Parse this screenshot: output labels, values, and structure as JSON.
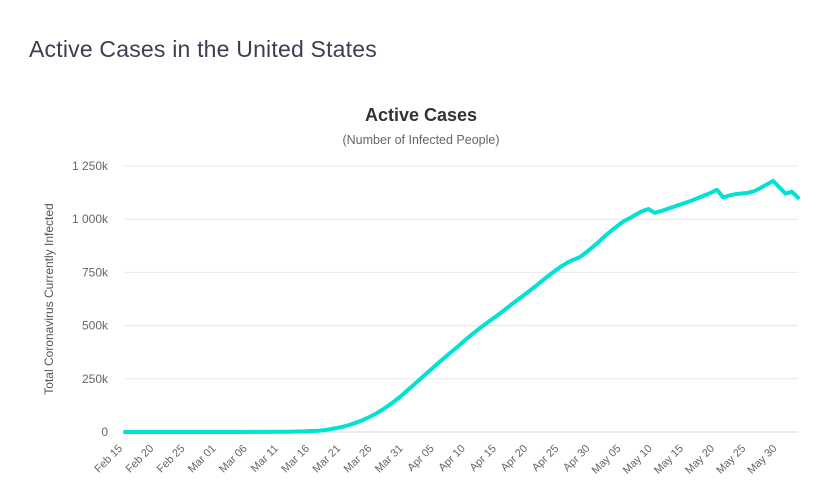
{
  "page": {
    "title": "Active Cases in the United States"
  },
  "chart_data": {
    "type": "line",
    "title": "Active Cases",
    "subtitle": "(Number of Infected People)",
    "ylabel": "Total Coronavirus Currently Infected",
    "xlabel": "",
    "legend": "none",
    "grid": "horizontal",
    "x_unit": "daily",
    "x_start": "Feb 15",
    "x_end": "Jun 02",
    "ylim": [
      0,
      1250000
    ],
    "ytick_interval": 250000,
    "yticks": [
      {
        "value": 0,
        "label": "0"
      },
      {
        "value": 250000,
        "label": "250k"
      },
      {
        "value": 500000,
        "label": "500k"
      },
      {
        "value": 750000,
        "label": "750k"
      },
      {
        "value": 1000000,
        "label": "1 000k"
      },
      {
        "value": 1250000,
        "label": "1 250k"
      }
    ],
    "xticks": [
      {
        "day": 0,
        "label": "Feb 15"
      },
      {
        "day": 5,
        "label": "Feb 20"
      },
      {
        "day": 10,
        "label": "Feb 25"
      },
      {
        "day": 15,
        "label": "Mar 01"
      },
      {
        "day": 20,
        "label": "Mar 06"
      },
      {
        "day": 25,
        "label": "Mar 11"
      },
      {
        "day": 30,
        "label": "Mar 16"
      },
      {
        "day": 35,
        "label": "Mar 21"
      },
      {
        "day": 40,
        "label": "Mar 26"
      },
      {
        "day": 45,
        "label": "Mar 31"
      },
      {
        "day": 50,
        "label": "Apr 05"
      },
      {
        "day": 55,
        "label": "Apr 10"
      },
      {
        "day": 60,
        "label": "Apr 15"
      },
      {
        "day": 65,
        "label": "Apr 20"
      },
      {
        "day": 70,
        "label": "Apr 25"
      },
      {
        "day": 75,
        "label": "Apr 30"
      },
      {
        "day": 80,
        "label": "May 05"
      },
      {
        "day": 85,
        "label": "May 10"
      },
      {
        "day": 90,
        "label": "May 15"
      },
      {
        "day": 95,
        "label": "May 20"
      },
      {
        "day": 100,
        "label": "May 25"
      },
      {
        "day": 105,
        "label": "May 30"
      }
    ],
    "values": [
      15,
      15,
      17,
      20,
      21,
      23,
      28,
      30,
      34,
      36,
      42,
      45,
      51,
      57,
      62,
      69,
      85,
      104,
      131,
      198,
      279,
      376,
      460,
      555,
      768,
      1075,
      1544,
      2110,
      2734,
      3425,
      4530,
      6260,
      8820,
      13500,
      18800,
      25000,
      33000,
      43000,
      54000,
      67000,
      82000,
      99000,
      118000,
      139000,
      162000,
      187000,
      213000,
      239000,
      265000,
      291000,
      317000,
      342000,
      367000,
      392000,
      417000,
      442000,
      466000,
      489000,
      511000,
      532000,
      553000,
      576000,
      599000,
      621000,
      643000,
      665000,
      688000,
      712000,
      735000,
      757000,
      778000,
      796000,
      810000,
      822000,
      844000,
      868000,
      893000,
      920000,
      945000,
      968000,
      990000,
      1005000,
      1022000,
      1038000,
      1048000,
      1030000,
      1038000,
      1048000,
      1058000,
      1068000,
      1078000,
      1088000,
      1100000,
      1112000,
      1124000,
      1138000,
      1102000,
      1112000,
      1118000,
      1121000,
      1124000,
      1132000,
      1147000,
      1163000,
      1180000,
      1150000,
      1120000,
      1129000,
      1101000
    ],
    "colors": {
      "line": "#00e2d2",
      "grid": "#e7e7e7",
      "axis_line": "#ccd6eb",
      "tick_label": "#666666",
      "title": "#333333",
      "subtitle": "#666666",
      "y_axis_title": "#555555",
      "page_title": "#3b3f50",
      "background": "#ffffff"
    }
  }
}
